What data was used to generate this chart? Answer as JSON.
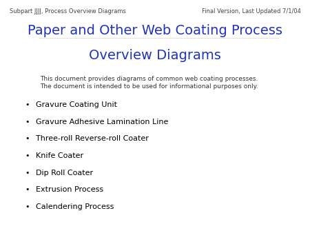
{
  "background_color": "#ffffff",
  "header_left": "Subpart JJJJ, Process Overview Diagrams",
  "header_right": "Final Version, Last Updated 7/1/04",
  "header_fontsize": 6,
  "header_color": "#444444",
  "title_line1": "Paper and Other Web Coating Process",
  "title_line2": "Overview Diagrams",
  "title_color": "#2233bb",
  "title_fontsize": 14,
  "subtitle_line1": "This document provides diagrams of common web coating processes.",
  "subtitle_line2": "The document is intended to be used for informational purposes only.",
  "subtitle_fontsize": 6.5,
  "subtitle_color": "#333333",
  "bullet_items": [
    "Gravure Coating Unit",
    "Gravure Adhesive Lamination Line",
    "Three-roll Reverse-roll Coater",
    "Knife Coater",
    "Dip Roll Coater",
    "Extrusion Process",
    "Calendering Process"
  ],
  "bullet_fontsize": 8,
  "bullet_color": "#000000",
  "bullet_char": "•"
}
